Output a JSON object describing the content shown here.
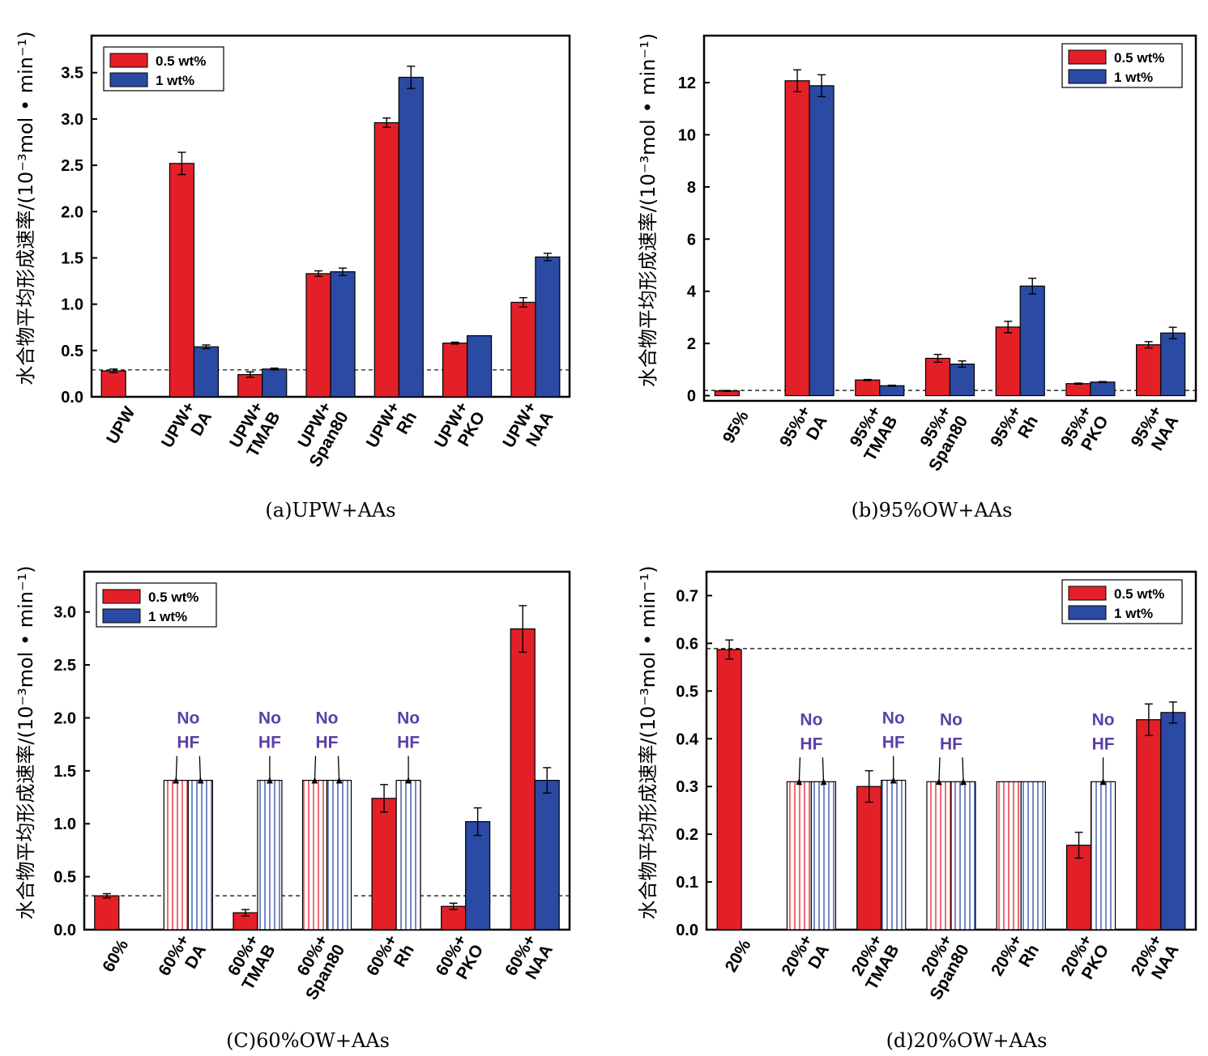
{
  "colors": {
    "red": "#e32028",
    "blue": "#2b4aa3",
    "ann": "#5b3fa8"
  },
  "ylabel": "水合物平均形成速率/(10⁻³mol • min⁻¹)",
  "legend": [
    "0.5 wt%",
    "1 wt%"
  ],
  "annotation": [
    "No",
    "HF"
  ],
  "chart_data": [
    {
      "type": "bar",
      "caption": "(a)UPW+AAs",
      "categories": [
        [
          "UPW"
        ],
        [
          "UPW+",
          "DA"
        ],
        [
          "UPW+",
          "TMAB"
        ],
        [
          "UPW+",
          "Span80"
        ],
        [
          "UPW+",
          "Rh"
        ],
        [
          "UPW+",
          "PKO"
        ],
        [
          "UPW+",
          "NAA"
        ]
      ],
      "ylim": [
        0,
        3.9
      ],
      "yticks": [
        "0.0",
        "0.5",
        "1.0",
        "1.5",
        "2.0",
        "2.5",
        "3.0",
        "3.5"
      ],
      "reference_line": 0.29,
      "series": [
        {
          "name": "0.5 wt%",
          "values": [
            0.28,
            2.52,
            0.24,
            1.33,
            2.96,
            0.58,
            1.02
          ],
          "errors": [
            0.02,
            0.12,
            0.03,
            0.03,
            0.05,
            0.01,
            0.05
          ],
          "no_hf": [
            false,
            false,
            false,
            false,
            false,
            false,
            false
          ]
        },
        {
          "name": "1 wt%",
          "values": [
            null,
            0.54,
            0.3,
            1.35,
            3.45,
            0.66,
            1.51
          ],
          "errors": [
            0,
            0.02,
            0.01,
            0.04,
            0.12,
            0,
            0.04
          ],
          "no_hf": [
            false,
            false,
            false,
            false,
            false,
            false,
            false
          ]
        }
      ],
      "annotations": []
    },
    {
      "type": "bar",
      "caption": "(b)95%OW+AAs",
      "categories": [
        [
          "95%"
        ],
        [
          "95%+",
          "DA"
        ],
        [
          "95%+",
          "TMAB"
        ],
        [
          "95%+",
          "Span80"
        ],
        [
          "95%+",
          "Rh"
        ],
        [
          "95%+",
          "PKO"
        ],
        [
          "95%+",
          "NAA"
        ]
      ],
      "ylim": [
        -0.2,
        13.8
      ],
      "yticks": [
        "0",
        "2",
        "4",
        "6",
        "8",
        "10",
        "12"
      ],
      "reference_line": 0.2,
      "series": [
        {
          "name": "0.5 wt%",
          "values": [
            0.18,
            12.07,
            0.6,
            1.43,
            2.63,
            0.46,
            1.95
          ],
          "errors": [
            0.02,
            0.42,
            0.02,
            0.15,
            0.22,
            0.02,
            0.12
          ],
          "no_hf": [
            false,
            false,
            false,
            false,
            false,
            false,
            false
          ]
        },
        {
          "name": "1 wt%",
          "values": [
            null,
            11.88,
            0.38,
            1.21,
            4.2,
            0.52,
            2.4
          ],
          "errors": [
            0,
            0.42,
            0.02,
            0.12,
            0.3,
            0.02,
            0.22
          ],
          "no_hf": [
            false,
            false,
            false,
            false,
            false,
            false,
            false
          ]
        }
      ],
      "annotations": []
    },
    {
      "type": "bar",
      "caption": "(C)60%OW+AAs",
      "categories": [
        [
          "60%"
        ],
        [
          "60%+",
          "DA"
        ],
        [
          "60%+",
          "TMAB"
        ],
        [
          "60%+",
          "Span80"
        ],
        [
          "60%+",
          "Rh"
        ],
        [
          "60%+",
          "PKO"
        ],
        [
          "60%+",
          "NAA"
        ]
      ],
      "ylim": [
        0,
        3.38
      ],
      "yticks": [
        "0.0",
        "0.5",
        "1.0",
        "1.5",
        "2.0",
        "2.5",
        "3.0"
      ],
      "reference_line": 0.32,
      "series": [
        {
          "name": "0.5 wt%",
          "values": [
            0.32,
            1.41,
            0.16,
            1.41,
            1.24,
            0.22,
            2.84
          ],
          "errors": [
            0.02,
            0,
            0.03,
            0,
            0.13,
            0.03,
            0.22
          ],
          "no_hf": [
            false,
            true,
            false,
            true,
            false,
            false,
            false
          ]
        },
        {
          "name": "1 wt%",
          "values": [
            null,
            1.41,
            1.41,
            1.41,
            1.41,
            1.02,
            1.41
          ],
          "errors": [
            0,
            0,
            0,
            0,
            0,
            0.13,
            0.12
          ],
          "no_hf": [
            false,
            true,
            true,
            true,
            true,
            false,
            false
          ]
        }
      ],
      "annotations": [
        {
          "category": 1,
          "targets": [
            0,
            1
          ]
        },
        {
          "category": 2,
          "targets": [
            1
          ]
        },
        {
          "category": 3,
          "targets": [
            0,
            1
          ]
        },
        {
          "category": 4,
          "targets": [
            1
          ]
        }
      ]
    },
    {
      "type": "bar",
      "caption": "(d)20%OW+AAs",
      "categories": [
        [
          "20%"
        ],
        [
          "20%+",
          "DA"
        ],
        [
          "20%+",
          "TMAB"
        ],
        [
          "20%+",
          "Span80"
        ],
        [
          "20%+",
          "Rh"
        ],
        [
          "20%+",
          "PKO"
        ],
        [
          "20%+",
          "NAA"
        ]
      ],
      "ylim": [
        0,
        0.75
      ],
      "yticks": [
        "0.0",
        "0.1",
        "0.2",
        "0.3",
        "0.4",
        "0.5",
        "0.6",
        "0.7"
      ],
      "reference_line": 0.589,
      "series": [
        {
          "name": "0.5 wt%",
          "values": [
            0.587,
            0.31,
            0.3,
            0.31,
            0.31,
            0.177,
            0.44
          ],
          "errors": [
            0.02,
            0,
            0.033,
            0,
            0,
            0.027,
            0.033
          ],
          "no_hf": [
            false,
            true,
            false,
            true,
            true,
            false,
            false
          ]
        },
        {
          "name": "1 wt%",
          "values": [
            null,
            0.31,
            0.313,
            0.31,
            0.31,
            0.31,
            0.455
          ],
          "errors": [
            0,
            0,
            0,
            0,
            0,
            0,
            0.022
          ],
          "no_hf": [
            false,
            true,
            true,
            true,
            true,
            true,
            false
          ]
        }
      ],
      "annotations": [
        {
          "category": 1,
          "targets": [
            0,
            1
          ]
        },
        {
          "category": 2,
          "targets": [
            1
          ]
        },
        {
          "category": 3,
          "targets": [
            0,
            1
          ]
        },
        {
          "category": 5,
          "targets": [
            1
          ]
        }
      ]
    }
  ]
}
